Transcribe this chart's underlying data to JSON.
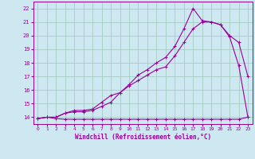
{
  "xlabel": "Windchill (Refroidissement éolien,°C)",
  "background_color": "#cde8f0",
  "grid_color": "#a0c8b8",
  "line_color": "#990099",
  "xlim": [
    -0.5,
    23.5
  ],
  "ylim": [
    13.5,
    22.5
  ],
  "yticks": [
    14,
    15,
    16,
    17,
    18,
    19,
    20,
    21,
    22
  ],
  "xticks": [
    0,
    1,
    2,
    3,
    4,
    5,
    6,
    7,
    8,
    9,
    10,
    11,
    12,
    13,
    14,
    15,
    16,
    17,
    18,
    19,
    20,
    21,
    22,
    23
  ],
  "line1_x": [
    0,
    1,
    2,
    3,
    4,
    5,
    6,
    7,
    8,
    9,
    10,
    11,
    12,
    13,
    14,
    15,
    16,
    17,
    18,
    19,
    20,
    21,
    22,
    23
  ],
  "line1_y": [
    13.9,
    14.0,
    13.9,
    13.85,
    13.85,
    13.85,
    13.85,
    13.85,
    13.85,
    13.85,
    13.85,
    13.85,
    13.85,
    13.85,
    13.85,
    13.85,
    13.85,
    13.85,
    13.85,
    13.85,
    13.85,
    13.85,
    13.85,
    14.0
  ],
  "line2_x": [
    0,
    1,
    2,
    3,
    4,
    5,
    6,
    7,
    8,
    9,
    10,
    11,
    12,
    13,
    14,
    15,
    16,
    17,
    18,
    19,
    20,
    21,
    22,
    23
  ],
  "line2_y": [
    13.9,
    14.0,
    14.0,
    14.3,
    14.4,
    14.4,
    14.5,
    14.8,
    15.1,
    15.8,
    16.3,
    16.7,
    17.1,
    17.5,
    17.7,
    18.5,
    19.5,
    20.5,
    21.0,
    21.0,
    20.8,
    20.0,
    19.5,
    17.0
  ],
  "line3_x": [
    0,
    1,
    2,
    3,
    4,
    5,
    6,
    7,
    8,
    9,
    10,
    11,
    12,
    13,
    14,
    15,
    16,
    17,
    18,
    19,
    20,
    21,
    22,
    23
  ],
  "line3_y": [
    13.9,
    14.0,
    14.0,
    14.3,
    14.5,
    14.5,
    14.6,
    15.1,
    15.6,
    15.8,
    16.4,
    17.1,
    17.5,
    18.0,
    18.4,
    19.2,
    20.5,
    22.0,
    21.1,
    21.0,
    20.8,
    19.9,
    17.8,
    14.0
  ]
}
